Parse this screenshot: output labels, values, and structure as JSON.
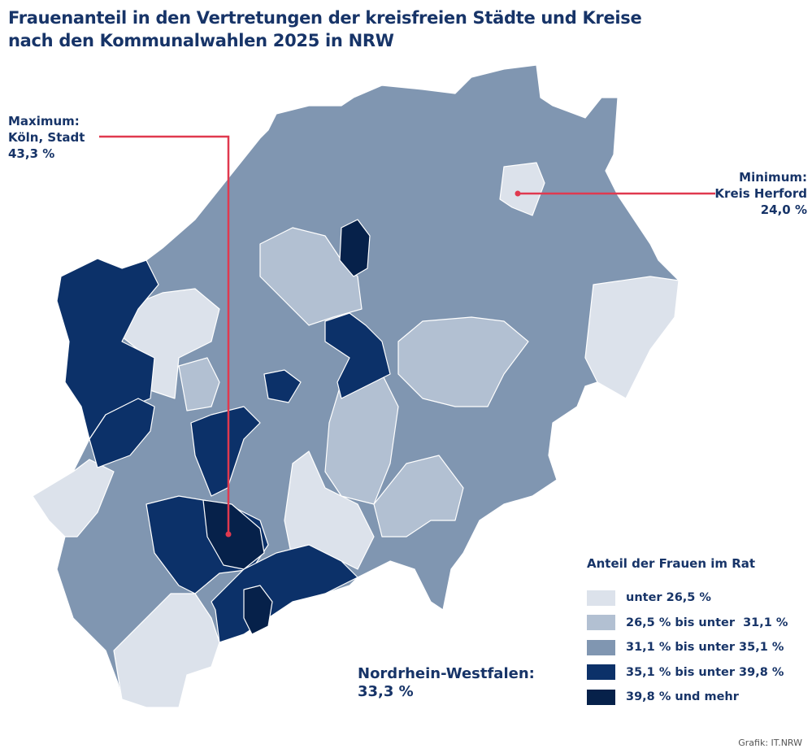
{
  "title": {
    "line1": "Frauenanteil in den Vertretungen der kreisfreien Städte und Kreise",
    "line2": "nach den Kommunalwahlen 2025 in NRW"
  },
  "annotations": {
    "maximum": {
      "label": "Maximum:",
      "region": "Köln, Stadt",
      "value": "43,3 %"
    },
    "minimum": {
      "label": "Minimum:",
      "region": "Kreis Herford",
      "value": "24,0 %"
    },
    "marker_color": "#e0394f"
  },
  "total": {
    "label": "Nordrhein-Westfalen:",
    "value": "33,3 %"
  },
  "legend": {
    "title": "Anteil der Frauen im Rat",
    "items": [
      {
        "label": "unter 26,5 %",
        "color": "#dce2eb"
      },
      {
        "label": "26,5 % bis unter  31,1 %",
        "color": "#b2c0d2"
      },
      {
        "label": "31,1 % bis unter 35,1 %",
        "color": "#8096b1"
      },
      {
        "label": "35,1 % bis unter 39,8 %",
        "color": "#0c3169"
      },
      {
        "label": "39,8 % und mehr",
        "color": "#06214a"
      }
    ]
  },
  "source": "Grafik: IT.NRW"
}
